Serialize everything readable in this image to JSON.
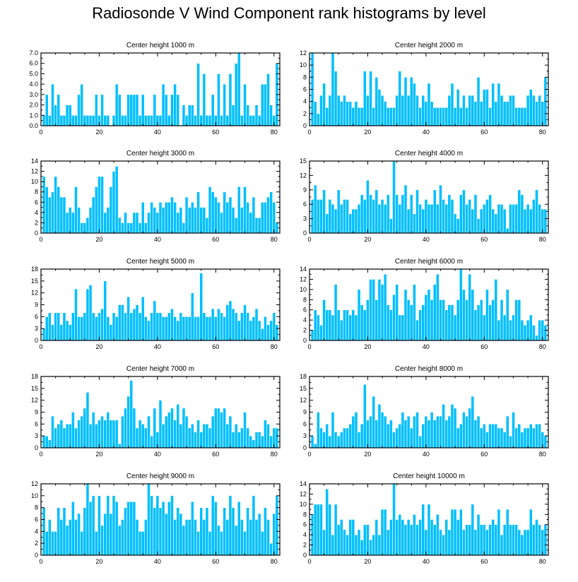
{
  "title": "Radiosonde V Wind Component rank histograms by level",
  "colors": {
    "bar": "#00bfff",
    "bar_edge": "#ffffff",
    "axis": "#000000",
    "background": "#ffffff"
  },
  "chart_data": [
    {
      "type": "bar",
      "title": "Center height 1000 m",
      "xlim": [
        0,
        82
      ],
      "ylim": [
        0,
        7
      ],
      "xticks": [
        0,
        20,
        40,
        60,
        80
      ],
      "yticks": [
        0,
        1,
        2,
        3,
        4,
        5,
        6,
        7
      ],
      "ytick_labels": [
        "0.0",
        "1.0",
        "2.0",
        "3.0",
        "4.0",
        "5.0",
        "6.0",
        "7.0"
      ],
      "x_start": 1,
      "values": [
        1,
        3,
        1,
        4,
        2,
        3,
        1,
        1,
        2,
        2,
        1,
        1,
        3,
        4,
        1,
        1,
        1,
        1,
        3,
        1,
        3,
        1,
        1,
        0,
        1,
        4,
        3,
        1,
        1,
        3,
        3,
        3,
        3,
        1,
        3,
        1,
        1,
        1,
        3,
        1,
        1,
        4,
        3,
        1,
        3,
        4,
        3,
        0,
        2,
        1,
        2,
        2,
        1,
        6,
        1,
        5,
        1,
        1,
        3,
        1,
        5,
        1,
        4,
        1,
        5,
        2,
        6,
        7,
        1,
        4,
        2,
        1,
        1,
        2,
        1,
        4,
        4,
        5,
        2,
        1,
        6
      ]
    },
    {
      "type": "bar",
      "title": "Center height 2000 m",
      "xlim": [
        0,
        82
      ],
      "ylim": [
        0,
        12
      ],
      "xticks": [
        0,
        20,
        40,
        60,
        80
      ],
      "yticks": [
        0,
        2,
        4,
        6,
        8,
        10,
        12
      ],
      "x_start": 1,
      "values": [
        12,
        4,
        2,
        5,
        7,
        3,
        5,
        12,
        9,
        5,
        4,
        5,
        4,
        4,
        3,
        4,
        3,
        3,
        9,
        5,
        9,
        3,
        8,
        6,
        5,
        4,
        3,
        3,
        3,
        5,
        9,
        5,
        8,
        5,
        8,
        7,
        5,
        3,
        5,
        4,
        7,
        4,
        3,
        3,
        3,
        3,
        3,
        5,
        7,
        3,
        6,
        3,
        5,
        3,
        5,
        5,
        4,
        8,
        4,
        6,
        6,
        3,
        7,
        4,
        7,
        5,
        4,
        4,
        5,
        5,
        3,
        3,
        3,
        3,
        5,
        6,
        5,
        4,
        5,
        4,
        8
      ]
    },
    {
      "type": "bar",
      "title": "Center height 3000 m",
      "xlim": [
        0,
        82
      ],
      "ylim": [
        0,
        14
      ],
      "xticks": [
        0,
        20,
        40,
        60,
        80
      ],
      "yticks": [
        0,
        2,
        4,
        6,
        8,
        10,
        12,
        14
      ],
      "x_start": 1,
      "values": [
        11,
        9,
        7,
        8,
        11,
        9,
        7,
        7,
        4,
        5,
        4,
        9,
        5,
        2,
        2,
        3,
        5,
        7,
        9,
        11,
        11,
        4,
        5,
        9,
        12,
        13,
        3,
        2,
        4,
        2,
        2,
        4,
        4,
        2,
        6,
        2,
        4,
        6,
        5,
        4,
        6,
        5,
        6,
        6,
        7,
        6,
        4,
        5,
        2,
        7,
        5,
        6,
        5,
        8,
        5,
        5,
        3,
        9,
        8,
        7,
        6,
        4,
        8,
        6,
        7,
        5,
        3,
        9,
        5,
        9,
        6,
        4,
        7,
        3,
        3,
        6,
        6,
        7,
        8,
        6,
        2
      ]
    },
    {
      "type": "bar",
      "title": "Center height 4000 m",
      "xlim": [
        0,
        82
      ],
      "ylim": [
        0,
        15
      ],
      "xticks": [
        0,
        20,
        40,
        60,
        80
      ],
      "yticks": [
        0,
        3,
        6,
        9,
        12,
        15
      ],
      "x_start": 1,
      "values": [
        7,
        10,
        7,
        7,
        9,
        4,
        7,
        6,
        5,
        9,
        6,
        7,
        7,
        4,
        5,
        5,
        6,
        8,
        7,
        11,
        8,
        7,
        9,
        6,
        7,
        6,
        8,
        3,
        15,
        8,
        6,
        8,
        10,
        5,
        8,
        4,
        9,
        6,
        5,
        7,
        6,
        6,
        9,
        6,
        10,
        7,
        6,
        8,
        7,
        4,
        3,
        8,
        9,
        6,
        7,
        5,
        8,
        3,
        5,
        6,
        7,
        8,
        5,
        4,
        6,
        6,
        5,
        1,
        6,
        6,
        6,
        9,
        8,
        5,
        6,
        5,
        7,
        9,
        6,
        5,
        5
      ]
    },
    {
      "type": "bar",
      "title": "Center height 5000 m",
      "xlim": [
        0,
        82
      ],
      "ylim": [
        0,
        18
      ],
      "xticks": [
        0,
        20,
        40,
        60,
        80
      ],
      "yticks": [
        0,
        3,
        6,
        9,
        12,
        15,
        18
      ],
      "x_start": 1,
      "values": [
        3,
        6,
        7,
        4,
        7,
        7,
        4,
        7,
        5,
        4,
        7,
        13,
        6,
        6,
        7,
        13,
        14,
        7,
        6,
        7,
        8,
        15,
        6,
        4,
        7,
        6,
        9,
        9,
        7,
        11,
        7,
        8,
        9,
        7,
        11,
        6,
        5,
        7,
        10,
        7,
        7,
        6,
        6,
        7,
        8,
        6,
        5,
        7,
        6,
        6,
        6,
        12,
        6,
        6,
        17,
        7,
        6,
        6,
        8,
        6,
        8,
        7,
        6,
        9,
        10,
        8,
        7,
        5,
        7,
        9,
        7,
        5,
        6,
        8,
        5,
        3,
        6,
        4,
        5,
        7,
        4
      ]
    },
    {
      "type": "bar",
      "title": "Center height 6000 m",
      "xlim": [
        0,
        82
      ],
      "ylim": [
        0,
        14
      ],
      "xticks": [
        0,
        20,
        40,
        60,
        80
      ],
      "yticks": [
        0,
        2,
        4,
        6,
        8,
        10,
        12,
        14
      ],
      "x_start": 1,
      "values": [
        2,
        6,
        5,
        3,
        8,
        6,
        6,
        5,
        11,
        6,
        4,
        6,
        6,
        5,
        6,
        5,
        10,
        7,
        6,
        8,
        12,
        12,
        8,
        12,
        11,
        13,
        7,
        6,
        9,
        11,
        5,
        5,
        10,
        8,
        7,
        11,
        4,
        6,
        7,
        9,
        10,
        8,
        11,
        13,
        8,
        8,
        6,
        7,
        7,
        5,
        8,
        14,
        10,
        8,
        13,
        10,
        6,
        7,
        8,
        5,
        10,
        7,
        8,
        12,
        4,
        8,
        5,
        10,
        4,
        5,
        8,
        8,
        4,
        3,
        4,
        5,
        3,
        1,
        4,
        4,
        3
      ]
    },
    {
      "type": "bar",
      "title": "Center height 7000 m",
      "xlim": [
        0,
        82
      ],
      "ylim": [
        0,
        18
      ],
      "xticks": [
        0,
        20,
        40,
        60,
        80
      ],
      "yticks": [
        0,
        3,
        6,
        9,
        12,
        15,
        18
      ],
      "x_start": 1,
      "values": [
        3,
        3,
        2,
        8,
        5,
        6,
        7,
        5,
        6,
        6,
        9,
        5,
        7,
        8,
        10,
        14,
        6,
        9,
        6,
        7,
        8,
        7,
        9,
        7,
        7,
        7,
        1,
        8,
        10,
        13,
        17,
        10,
        5,
        7,
        6,
        5,
        8,
        3,
        10,
        4,
        12,
        6,
        8,
        9,
        10,
        7,
        11,
        6,
        10,
        8,
        5,
        6,
        4,
        7,
        4,
        6,
        6,
        5,
        8,
        10,
        10,
        9,
        10,
        6,
        8,
        4,
        6,
        4,
        5,
        9,
        5,
        3,
        2,
        4,
        4,
        3,
        7,
        6,
        3,
        5,
        5
      ]
    },
    {
      "type": "bar",
      "title": "Center height 8000 m",
      "xlim": [
        0,
        82
      ],
      "ylim": [
        0,
        18
      ],
      "xticks": [
        0,
        20,
        40,
        60,
        80
      ],
      "yticks": [
        0,
        3,
        6,
        9,
        12,
        15,
        18
      ],
      "x_start": 1,
      "values": [
        3,
        1,
        9,
        5,
        4,
        6,
        3,
        9,
        4,
        3,
        4,
        5,
        5,
        6,
        8,
        9,
        4,
        6,
        16,
        7,
        8,
        13,
        7,
        11,
        9,
        8,
        6,
        7,
        4,
        5,
        6,
        9,
        7,
        8,
        5,
        8,
        9,
        3,
        6,
        8,
        7,
        9,
        7,
        8,
        8,
        11,
        7,
        8,
        11,
        10,
        5,
        6,
        9,
        8,
        10,
        13,
        7,
        8,
        5,
        6,
        4,
        6,
        6,
        6,
        5,
        5,
        4,
        8,
        3,
        9,
        5,
        6,
        4,
        5,
        5,
        6,
        5,
        6,
        6,
        4,
        3
      ]
    },
    {
      "type": "bar",
      "title": "Center height 9000 m",
      "xlim": [
        0,
        82
      ],
      "ylim": [
        0,
        12
      ],
      "xticks": [
        0,
        20,
        40,
        60,
        80
      ],
      "yticks": [
        0,
        2,
        4,
        6,
        8,
        10,
        12
      ],
      "x_start": 1,
      "values": [
        8,
        4,
        6,
        4,
        4,
        8,
        6,
        8,
        5,
        6,
        9,
        6,
        7,
        4,
        8,
        12,
        9,
        10,
        4,
        10,
        5,
        7,
        10,
        7,
        10,
        9,
        5,
        6,
        8,
        9,
        9,
        9,
        6,
        4,
        4,
        6,
        12,
        10,
        8,
        10,
        8,
        9,
        7,
        9,
        10,
        6,
        8,
        7,
        5,
        6,
        6,
        9,
        6,
        4,
        8,
        6,
        8,
        4,
        10,
        9,
        5,
        4,
        8,
        6,
        10,
        8,
        5,
        9,
        6,
        4,
        8,
        6,
        10,
        6,
        7,
        4,
        8,
        6,
        2,
        7,
        10
      ]
    },
    {
      "type": "bar",
      "title": "Center height 10000 m",
      "xlim": [
        0,
        82
      ],
      "ylim": [
        0,
        14
      ],
      "xticks": [
        0,
        20,
        40,
        60,
        80
      ],
      "yticks": [
        0,
        2,
        4,
        6,
        8,
        10,
        12,
        14
      ],
      "x_start": 1,
      "values": [
        8,
        10,
        10,
        10,
        5,
        13,
        10,
        4,
        10,
        6,
        7,
        5,
        4,
        7,
        7,
        4,
        5,
        3,
        6,
        6,
        3,
        4,
        7,
        4,
        9,
        9,
        5,
        7,
        14,
        7,
        8,
        7,
        6,
        7,
        6,
        8,
        6,
        7,
        10,
        5,
        10,
        7,
        6,
        8,
        5,
        4,
        7,
        5,
        9,
        9,
        7,
        9,
        5,
        6,
        6,
        10,
        5,
        8,
        6,
        6,
        5,
        6,
        7,
        6,
        9,
        4,
        6,
        9,
        6,
        6,
        6,
        5,
        4,
        5,
        5,
        9,
        6,
        7,
        6,
        5,
        6
      ]
    }
  ]
}
